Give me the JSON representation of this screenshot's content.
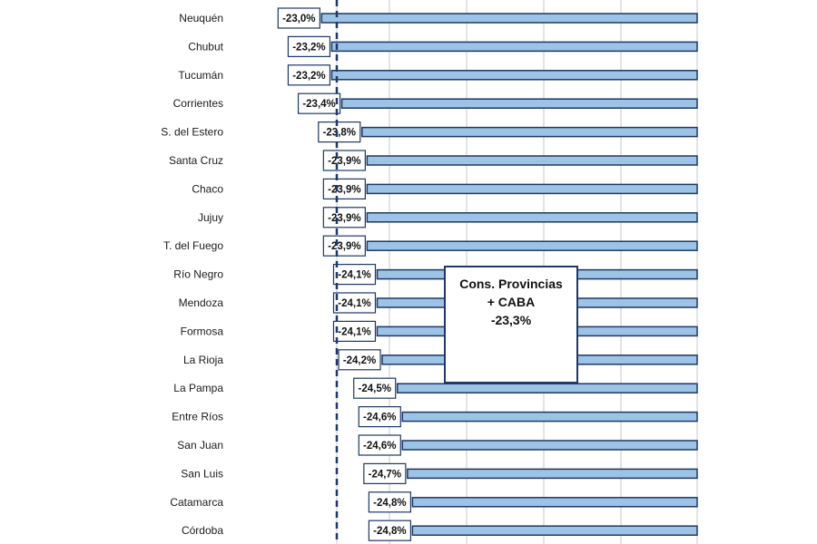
{
  "chart_data": {
    "type": "bar",
    "orientation": "horizontal",
    "categories": [
      "Neuquén",
      "Chubut",
      "Tucumán",
      "Corrientes",
      "S. del Estero",
      "Santa Cruz",
      "Chaco",
      "Jujuy",
      "T. del Fuego",
      "Río Negro",
      "Mendoza",
      "Formosa",
      "La Rioja",
      "La Pampa",
      "Entre Ríos",
      "San Juan",
      "San Luis",
      "Catamarca",
      "Córdoba"
    ],
    "values": [
      -23.0,
      -23.2,
      -23.2,
      -23.4,
      -23.8,
      -23.9,
      -23.9,
      -23.9,
      -23.9,
      -24.1,
      -24.1,
      -24.1,
      -24.2,
      -24.5,
      -24.6,
      -24.6,
      -24.7,
      -24.8,
      -24.8
    ],
    "value_labels": [
      "-23,0%",
      "-23,2%",
      "-23,2%",
      "-23,4%",
      "-23,8%",
      "-23,9%",
      "-23,9%",
      "-23,9%",
      "-23,9%",
      "-24,1%",
      "-24,1%",
      "-24,1%",
      "-24,2%",
      "-24,5%",
      "-24,6%",
      "-24,6%",
      "-24,7%",
      "-24,8%",
      "-24,8%"
    ],
    "reference_line": {
      "value": -23.3
    },
    "annotation": {
      "lines": [
        "Cons. Provincias",
        "+ CABA",
        "-23,3%"
      ]
    },
    "bar_color": "#9dc3e6",
    "bar_edge_color": "#1f3864",
    "grid": true,
    "legend": "none",
    "title": "",
    "xlabel": "",
    "ylabel": ""
  }
}
